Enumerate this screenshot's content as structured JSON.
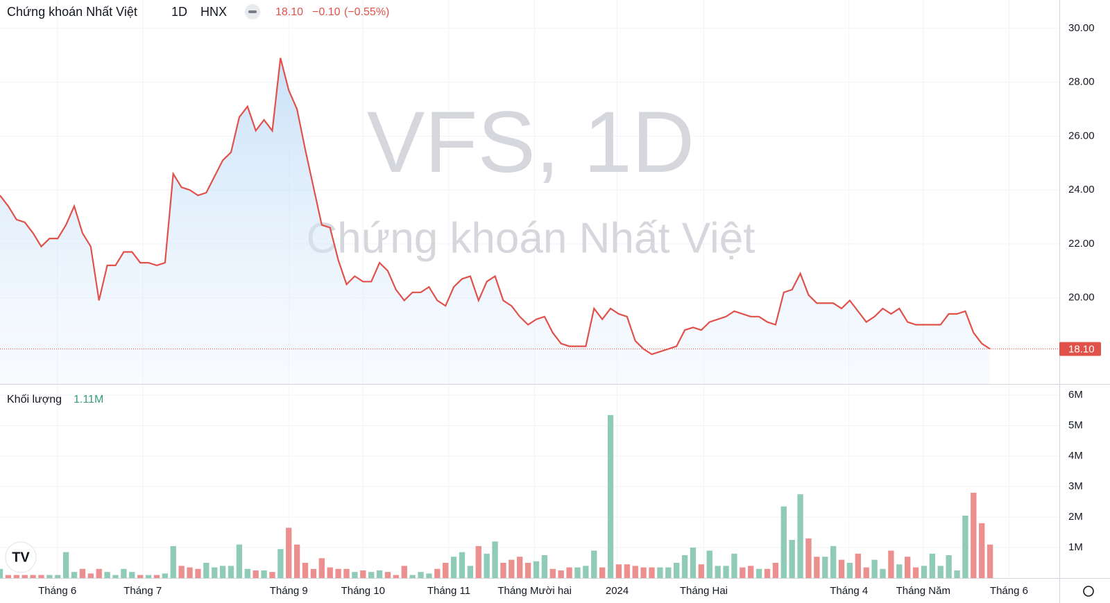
{
  "header": {
    "title": "Chứng khoán Nhất Việt",
    "interval": "1D",
    "exchange": "HNX",
    "last": "18.10",
    "change": "−0.10",
    "change_pct": "(−0.55%)"
  },
  "watermark": "VFS, 1D",
  "chart_data": [
    {
      "type": "line",
      "color": "#e0514a",
      "up_color": "#8fcbb7",
      "down_color": "#eb8f8f",
      "values": [
        23.8,
        23.4,
        22.9,
        22.8,
        22.4,
        21.9,
        22.2,
        22.2,
        22.7,
        23.4,
        22.4,
        21.9,
        19.9,
        21.2,
        21.2,
        21.7,
        21.7,
        21.3,
        21.3,
        21.2,
        21.3,
        24.6,
        24.1,
        24.0,
        23.8,
        23.9,
        24.5,
        25.1,
        25.4,
        26.7,
        27.1,
        26.2,
        26.6,
        26.2,
        28.9,
        27.7,
        27.0,
        25.5,
        24.1,
        22.7,
        22.6,
        21.4,
        20.5,
        20.8,
        20.6,
        20.6,
        21.3,
        21.0,
        20.3,
        19.9,
        20.2,
        20.2,
        20.4,
        19.9,
        19.7,
        20.4,
        20.7,
        20.8,
        19.9,
        20.6,
        20.8,
        19.9,
        19.7,
        19.3,
        19.0,
        19.2,
        19.3,
        18.7,
        18.3,
        18.2,
        18.2,
        18.2,
        19.6,
        19.2,
        19.6,
        19.4,
        19.3,
        18.4,
        18.1,
        17.9,
        18.0,
        18.1,
        18.2,
        18.8,
        18.9,
        18.8,
        19.1,
        19.2,
        19.3,
        19.5,
        19.4,
        19.3,
        19.3,
        19.1,
        19.0,
        20.2,
        20.3,
        20.9,
        20.1,
        19.8,
        19.8,
        19.8,
        19.6,
        19.9,
        19.5,
        19.1,
        19.3,
        19.6,
        19.4,
        19.6,
        19.1,
        19.0,
        19.0,
        19.0,
        19.0,
        19.4,
        19.4,
        19.5,
        18.7,
        18.3,
        18.1
      ],
      "last_label": "18.10",
      "ylim": [
        16.8,
        31.05
      ],
      "yticks": [
        {
          "value": 20,
          "label": "20.00"
        },
        {
          "value": 22,
          "label": "22.00"
        },
        {
          "value": 24,
          "label": "24.00"
        },
        {
          "value": 26,
          "label": "26.00"
        },
        {
          "value": 28,
          "label": "28.00"
        },
        {
          "value": 30,
          "label": "30.00"
        }
      ],
      "xlim": [
        0,
        128.4
      ],
      "xticks": [
        {
          "value": 6.95,
          "label": "Tháng 6"
        },
        {
          "value": 17.3,
          "label": "Tháng 7"
        },
        {
          "value": 35,
          "label": "Tháng 9"
        },
        {
          "value": 44,
          "label": "Tháng 10"
        },
        {
          "value": 54.4,
          "label": "Tháng 11"
        },
        {
          "value": 64.8,
          "label": "Tháng Mười hai"
        },
        {
          "value": 74.8,
          "label": "2024"
        },
        {
          "value": 85.3,
          "label": "Tháng Hai"
        },
        {
          "value": 102.9,
          "label": "Tháng 4"
        },
        {
          "value": 111.9,
          "label": "Tháng Năm"
        },
        {
          "value": 122.3,
          "label": "Tháng 6"
        }
      ],
      "grid": true
    },
    {
      "type": "bar",
      "title": "Khối lượng",
      "last_label": "1.11M",
      "values": [
        300000,
        100000,
        100000,
        100000,
        100000,
        100000,
        100000,
        100000,
        850000,
        200000,
        300000,
        150000,
        300000,
        200000,
        100000,
        300000,
        200000,
        100000,
        100000,
        100000,
        150000,
        1050000,
        400000,
        350000,
        300000,
        500000,
        350000,
        400000,
        400000,
        1100000,
        300000,
        250000,
        250000,
        200000,
        950000,
        1650000,
        1100000,
        500000,
        300000,
        650000,
        350000,
        300000,
        300000,
        200000,
        250000,
        200000,
        250000,
        200000,
        100000,
        400000,
        100000,
        200000,
        150000,
        300000,
        500000,
        700000,
        850000,
        400000,
        1050000,
        800000,
        1200000,
        500000,
        600000,
        700000,
        500000,
        550000,
        750000,
        300000,
        250000,
        350000,
        350000,
        400000,
        900000,
        350000,
        5350000,
        450000,
        450000,
        400000,
        350000,
        350000,
        350000,
        350000,
        500000,
        750000,
        1000000,
        450000,
        900000,
        400000,
        400000,
        800000,
        350000,
        400000,
        300000,
        300000,
        500000,
        2350000,
        1250000,
        2750000,
        1300000,
        700000,
        700000,
        1050000,
        600000,
        500000,
        800000,
        350000,
        600000,
        300000,
        900000,
        450000,
        700000,
        350000,
        400000,
        800000,
        400000,
        750000,
        250000,
        2050000,
        2800000,
        1800000,
        1100000
      ],
      "ylim": [
        0,
        6370000
      ],
      "yticks": [
        {
          "value": 1000000,
          "label": "1M"
        },
        {
          "value": 2000000,
          "label": "2M"
        },
        {
          "value": 3000000,
          "label": "3M"
        },
        {
          "value": 4000000,
          "label": "4M"
        },
        {
          "value": 5000000,
          "label": "5M"
        },
        {
          "value": 6000000,
          "label": "6M"
        }
      ]
    }
  ]
}
